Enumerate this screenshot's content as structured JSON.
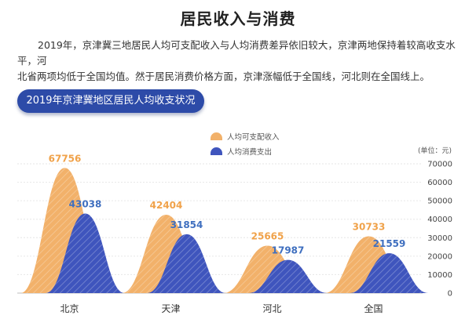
{
  "page": {
    "title": "居民收入与消费",
    "intro_line1": "2019年，京津冀三地居民人均可支配收入与人均消费差异依旧较大，京津两地保持着较高收支水平，河",
    "intro_line2": "北省两项均低于全国均值。然于居民消费价格方面，京津涨幅低于全国线，河北则在全国线上。",
    "section_label": "2019年京津冀地区居民人均收支状况"
  },
  "colors": {
    "income": "#f2b16a",
    "expenditure": "#3f55bd",
    "income_label": "#f0a24a",
    "expenditure_label": "#3f6fbf",
    "pill": "#2d4ba8"
  },
  "chart_data": {
    "type": "area",
    "categories": [
      "北京",
      "天津",
      "河北",
      "全国"
    ],
    "series": [
      {
        "name": "人均可支配收入",
        "values": [
          67756,
          42404,
          25665,
          30733
        ]
      },
      {
        "name": "人均消费支出",
        "values": [
          43038,
          31854,
          17987,
          21559
        ]
      }
    ],
    "unit": "(单位：元)",
    "ylim": [
      0,
      70000
    ],
    "yticks": [
      0,
      10000,
      20000,
      30000,
      40000,
      50000,
      60000,
      70000
    ],
    "legend_position": "top-center",
    "grid": true
  }
}
